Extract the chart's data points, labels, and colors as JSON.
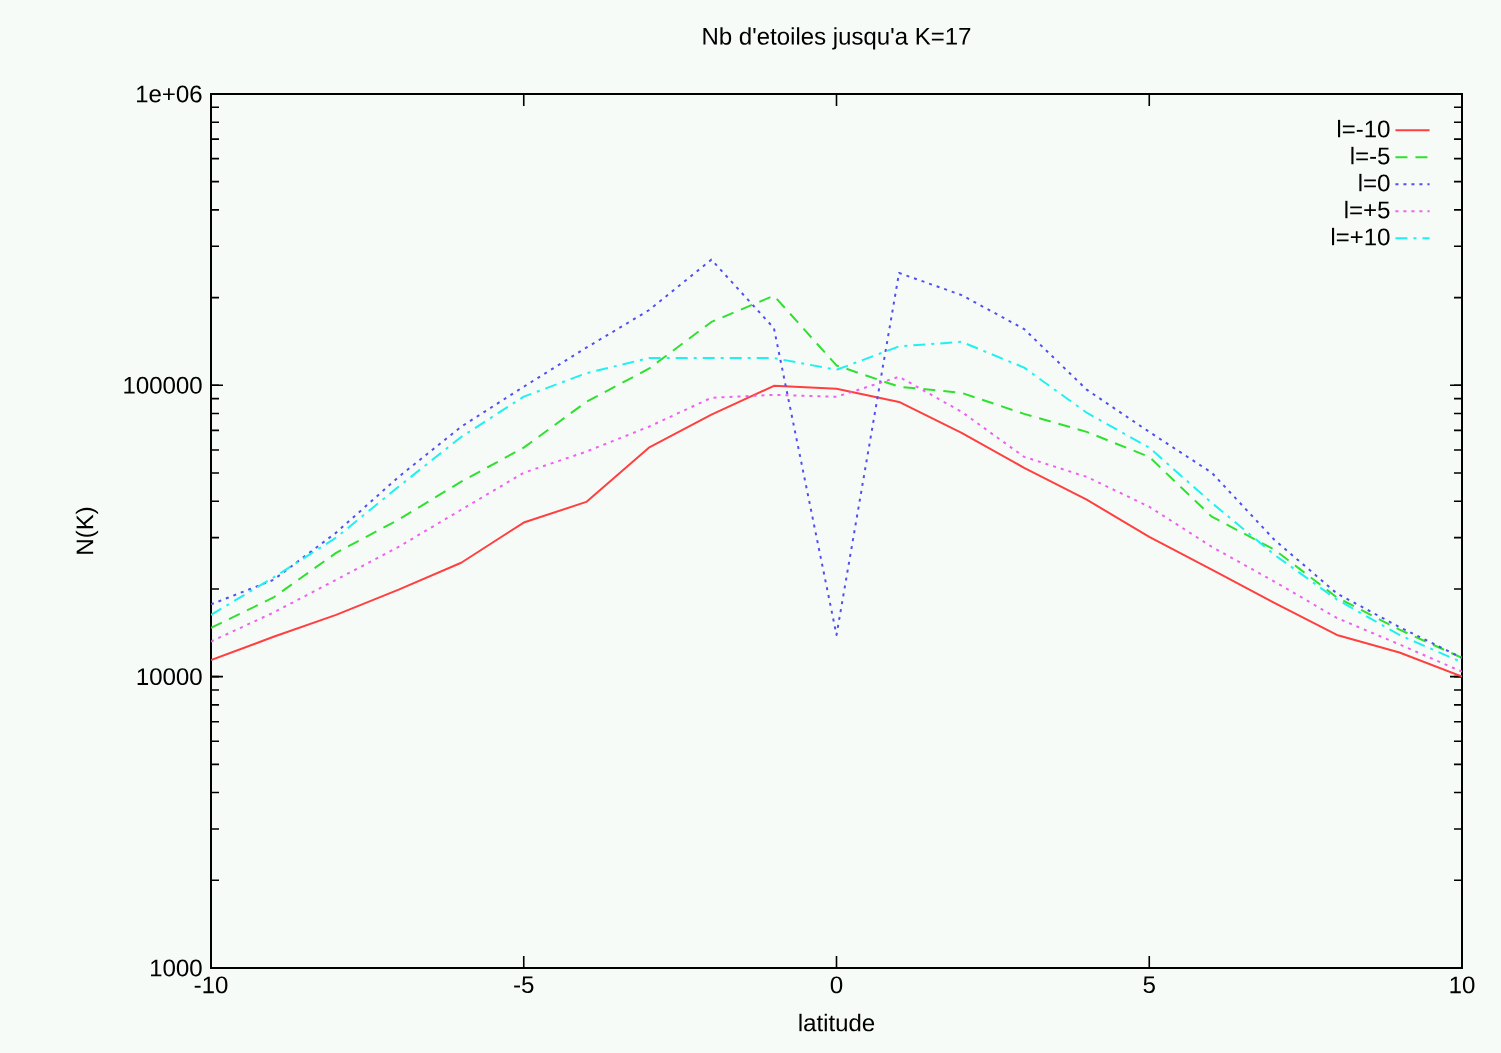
{
  "chart_data": {
    "type": "line",
    "title": "Nb d'etoiles jusqu'a K=17",
    "xlabel": "latitude",
    "ylabel": "N(K)",
    "log": "y",
    "x": [
      -10,
      -9,
      -8,
      -7,
      -6,
      -5,
      -4,
      -3,
      -2,
      -1,
      0,
      1,
      2,
      3,
      4,
      5,
      6,
      7,
      8,
      9,
      10
    ],
    "xlim": [
      -10,
      10
    ],
    "xticks": [
      -10,
      -5,
      0,
      5,
      10
    ],
    "ylim": [
      1000,
      1000000
    ],
    "yticks": [
      1000,
      10000,
      100000,
      {
        "value": 1000000,
        "label": "1e+06"
      }
    ],
    "legend": "top right",
    "series": [
      {
        "name": "l=-10",
        "color": "#ff4040",
        "line_style": "solid",
        "values": [
          11400,
          13700,
          16300,
          19900,
          24600,
          33800,
          39800,
          61100,
          79300,
          99600,
          97300,
          87700,
          68700,
          52100,
          40500,
          30200,
          23300,
          17900,
          13900,
          12100,
          10000
        ]
      },
      {
        "name": "l=-5",
        "color": "#30e030",
        "line_style": "dashed",
        "values": [
          14700,
          18700,
          26600,
          34600,
          46700,
          61100,
          87700,
          114000,
          165000,
          203000,
          117000,
          98900,
          94200,
          79800,
          69200,
          56800,
          35400,
          27300,
          18700,
          14500,
          11600
        ]
      },
      {
        "name": "l=0",
        "color": "#5050f0",
        "line_style": "dotted",
        "values": [
          17700,
          21500,
          31200,
          48500,
          72100,
          98900,
          134600,
          181000,
          270000,
          157000,
          13900,
          243000,
          204000,
          156000,
          96600,
          69200,
          50100,
          29500,
          19300,
          14800,
          11600
        ]
      },
      {
        "name": "l=+5",
        "color": "#f060f0",
        "line_style": "dotted",
        "values": [
          13200,
          16600,
          21500,
          27900,
          37400,
          50100,
          59200,
          72100,
          90600,
          92700,
          91300,
          107000,
          81100,
          56800,
          48500,
          38300,
          27900,
          21200,
          15900,
          12900,
          10400
        ]
      },
      {
        "name": "l=+10",
        "color": "#20f0f0",
        "line_style": "dashdot",
        "values": [
          16300,
          21900,
          30000,
          44900,
          66500,
          91400,
          110000,
          124000,
          124000,
          124000,
          113000,
          136000,
          141000,
          115000,
          80500,
          61100,
          39500,
          26200,
          18400,
          13900,
          11200
        ]
      }
    ]
  }
}
